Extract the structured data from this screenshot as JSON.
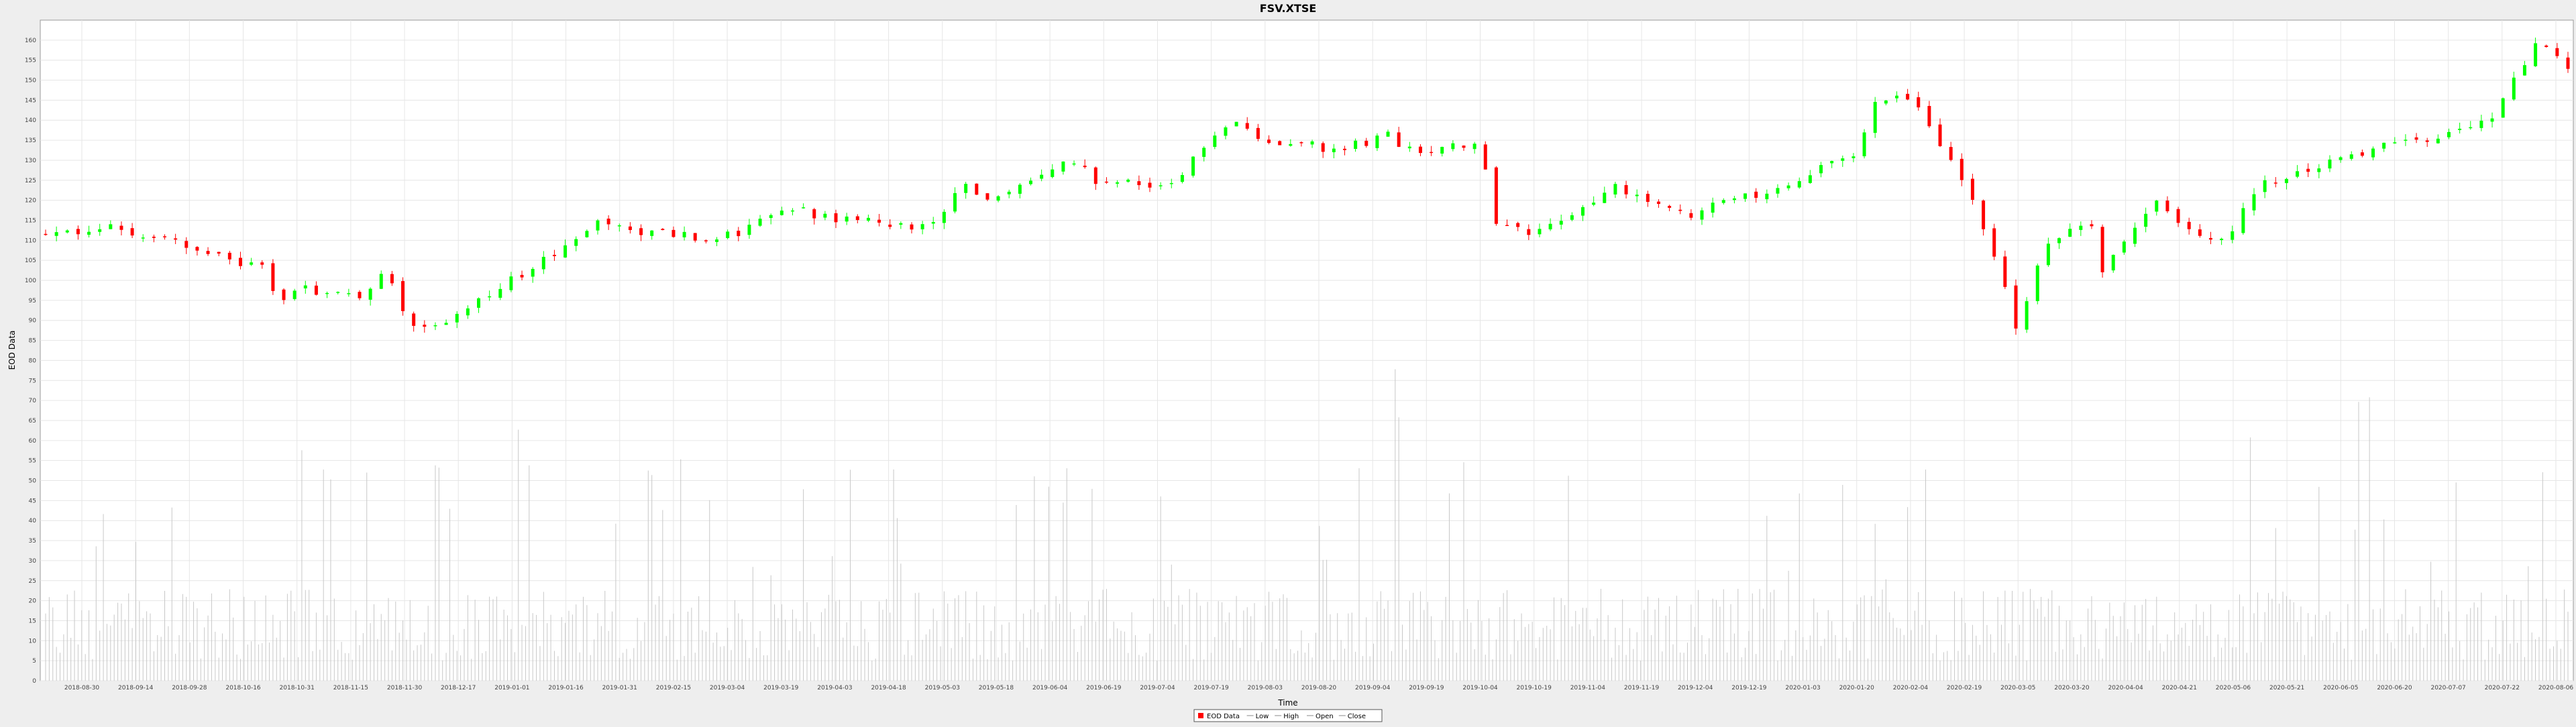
{
  "title": "FSV.XTSE",
  "chart_data": {
    "type": "candlestick",
    "title": "FSV.XTSE",
    "xlabel": "Time",
    "ylabel": "EOD Data",
    "ylim": [
      0,
      165
    ],
    "yticks": [
      0,
      5,
      10,
      15,
      20,
      25,
      30,
      35,
      40,
      45,
      50,
      55,
      60,
      65,
      70,
      75,
      80,
      85,
      90,
      95,
      100,
      105,
      110,
      115,
      120,
      125,
      130,
      135,
      140,
      145,
      150,
      155,
      160
    ],
    "grid": true,
    "legend": {
      "position": "bottom-center",
      "items": [
        "EOD Data",
        "Low",
        "High",
        "Open",
        "Close"
      ]
    },
    "colors": {
      "up": "#00ff00",
      "down": "#ff0000",
      "volume": "#c8c8c8",
      "grid": "#e6e6e6"
    },
    "x_date_labels": [
      "2018-08-30",
      "2018-09-14",
      "2018-09-28",
      "2018-10-16",
      "2018-10-31",
      "2018-11-15",
      "2018-11-30",
      "2018-12-17",
      "2019-01-01",
      "2019-01-16",
      "2019-01-31",
      "2019-02-15",
      "2019-03-04",
      "2019-03-19",
      "2019-04-03",
      "2019-04-18",
      "2019-05-03",
      "2019-05-18",
      "2019-06-04",
      "2019-06-19",
      "2019-07-04",
      "2019-07-19",
      "2019-08-03",
      "2019-08-20",
      "2019-09-04",
      "2019-09-19",
      "2019-10-04",
      "2019-10-19",
      "2019-11-04",
      "2019-11-19",
      "2019-12-04",
      "2019-12-19",
      "2020-01-03",
      "2020-01-20",
      "2020-02-04",
      "2020-02-19",
      "2020-03-05",
      "2020-03-20",
      "2020-04-04",
      "2020-04-21",
      "2020-05-06",
      "2020-05-21",
      "2020-06-05",
      "2020-06-20",
      "2020-07-07",
      "2020-07-22",
      "2020-08-06"
    ],
    "price_keyframes": [
      [
        0,
        111
      ],
      [
        18,
        113
      ],
      [
        34,
        110
      ],
      [
        42,
        108
      ],
      [
        54,
        103
      ],
      [
        60,
        105
      ],
      [
        64,
        95
      ],
      [
        72,
        98
      ],
      [
        86,
        96
      ],
      [
        94,
        102
      ],
      [
        102,
        88
      ],
      [
        110,
        88
      ],
      [
        122,
        96
      ],
      [
        140,
        106
      ],
      [
        152,
        114
      ],
      [
        166,
        112
      ],
      [
        174,
        112
      ],
      [
        186,
        110
      ],
      [
        194,
        113
      ],
      [
        204,
        118
      ],
      [
        224,
        115
      ],
      [
        244,
        113
      ],
      [
        250,
        118
      ],
      [
        255,
        125
      ],
      [
        262,
        119
      ],
      [
        285,
        130
      ],
      [
        292,
        124
      ],
      [
        314,
        124
      ],
      [
        320,
        133
      ],
      [
        330,
        140
      ],
      [
        340,
        134
      ],
      [
        350,
        135
      ],
      [
        356,
        132
      ],
      [
        372,
        136
      ],
      [
        380,
        132
      ],
      [
        398,
        134
      ],
      [
        402,
        113
      ],
      [
        415,
        112
      ],
      [
        436,
        124
      ],
      [
        442,
        120
      ],
      [
        458,
        116
      ],
      [
        467,
        121
      ],
      [
        482,
        122
      ],
      [
        496,
        130
      ],
      [
        500,
        129
      ],
      [
        508,
        146
      ],
      [
        518,
        144
      ],
      [
        530,
        128
      ],
      [
        540,
        107
      ],
      [
        546,
        88
      ],
      [
        554,
        108
      ],
      [
        566,
        116
      ],
      [
        570,
        102
      ],
      [
        586,
        120
      ],
      [
        592,
        112
      ],
      [
        604,
        110
      ],
      [
        614,
        124
      ],
      [
        640,
        132
      ],
      [
        662,
        136
      ],
      [
        678,
        140
      ],
      [
        690,
        160
      ],
      [
        700,
        152
      ]
    ],
    "n_bars": 700,
    "volume_range_note": "daily volumes plotted as thin grey bars, 0-100 scale on the same axis"
  }
}
